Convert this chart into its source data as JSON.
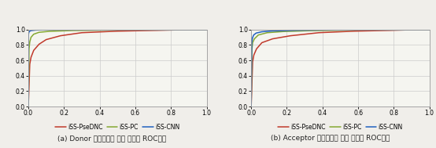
{
  "title_a": "(a) Donor 스플라이싱 위치 예측의 ROC공선",
  "title_b": "(b) Acceptor 스플라이싱 위치 예측의 ROC공선",
  "legend_labels": [
    "iSS-PseDNC",
    "iSS-PC",
    "iSS-CNN"
  ],
  "colors": [
    "#c0392b",
    "#84a832",
    "#2060c0"
  ],
  "donor": {
    "psednc": {
      "x": [
        0,
        0.008,
        0.015,
        0.03,
        0.06,
        0.1,
        0.18,
        0.3,
        0.5,
        0.72,
        0.9,
        1.0
      ],
      "y": [
        0,
        0.55,
        0.64,
        0.73,
        0.81,
        0.87,
        0.92,
        0.96,
        0.98,
        0.99,
        1.0,
        1.0
      ]
    },
    "pc": {
      "x": [
        0,
        0.004,
        0.008,
        0.015,
        0.03,
        0.06,
        0.12,
        0.25,
        0.45,
        0.7,
        0.9,
        1.0
      ],
      "y": [
        0,
        0.75,
        0.84,
        0.9,
        0.94,
        0.965,
        0.978,
        0.988,
        0.994,
        0.998,
        1.0,
        1.0
      ]
    },
    "cnn": {
      "x": [
        0,
        0.001,
        0.003,
        0.007,
        0.015,
        0.04,
        0.08,
        0.18,
        0.38,
        0.65,
        0.88,
        1.0
      ],
      "y": [
        0,
        0.94,
        0.965,
        0.978,
        0.987,
        0.994,
        0.997,
        0.999,
        1.0,
        1.0,
        1.0,
        1.0
      ]
    }
  },
  "acceptor": {
    "psednc": {
      "x": [
        0,
        0.008,
        0.015,
        0.03,
        0.06,
        0.12,
        0.22,
        0.38,
        0.58,
        0.78,
        0.93,
        1.0
      ],
      "y": [
        0,
        0.58,
        0.67,
        0.75,
        0.83,
        0.88,
        0.92,
        0.96,
        0.98,
        0.99,
        1.0,
        1.0
      ]
    },
    "pc": {
      "x": [
        0,
        0.004,
        0.008,
        0.018,
        0.04,
        0.09,
        0.18,
        0.33,
        0.53,
        0.74,
        0.9,
        1.0
      ],
      "y": [
        0,
        0.74,
        0.83,
        0.88,
        0.93,
        0.96,
        0.975,
        0.986,
        0.993,
        0.998,
        1.0,
        1.0
      ]
    },
    "cnn": {
      "x": [
        0,
        0.003,
        0.007,
        0.014,
        0.028,
        0.06,
        0.12,
        0.25,
        0.45,
        0.7,
        0.9,
        1.0
      ],
      "y": [
        0,
        0.83,
        0.89,
        0.93,
        0.955,
        0.972,
        0.983,
        0.991,
        0.996,
        0.999,
        1.0,
        1.0
      ]
    }
  },
  "xlim": [
    0,
    1
  ],
  "ylim": [
    0,
    1.0
  ],
  "xticks": [
    0,
    0.2,
    0.4,
    0.6,
    0.8,
    1
  ],
  "yticks": [
    0,
    0.2,
    0.4,
    0.6,
    0.8,
    1
  ],
  "tick_fontsize": 5.5,
  "caption_fontsize": 6.5,
  "legend_fontsize": 5.5,
  "linewidth": 1.1,
  "plot_bg_color": "#f5f5f0",
  "fig_bg_color": "#f0eeea",
  "grid_color": "#cccccc",
  "spine_color": "#999999"
}
